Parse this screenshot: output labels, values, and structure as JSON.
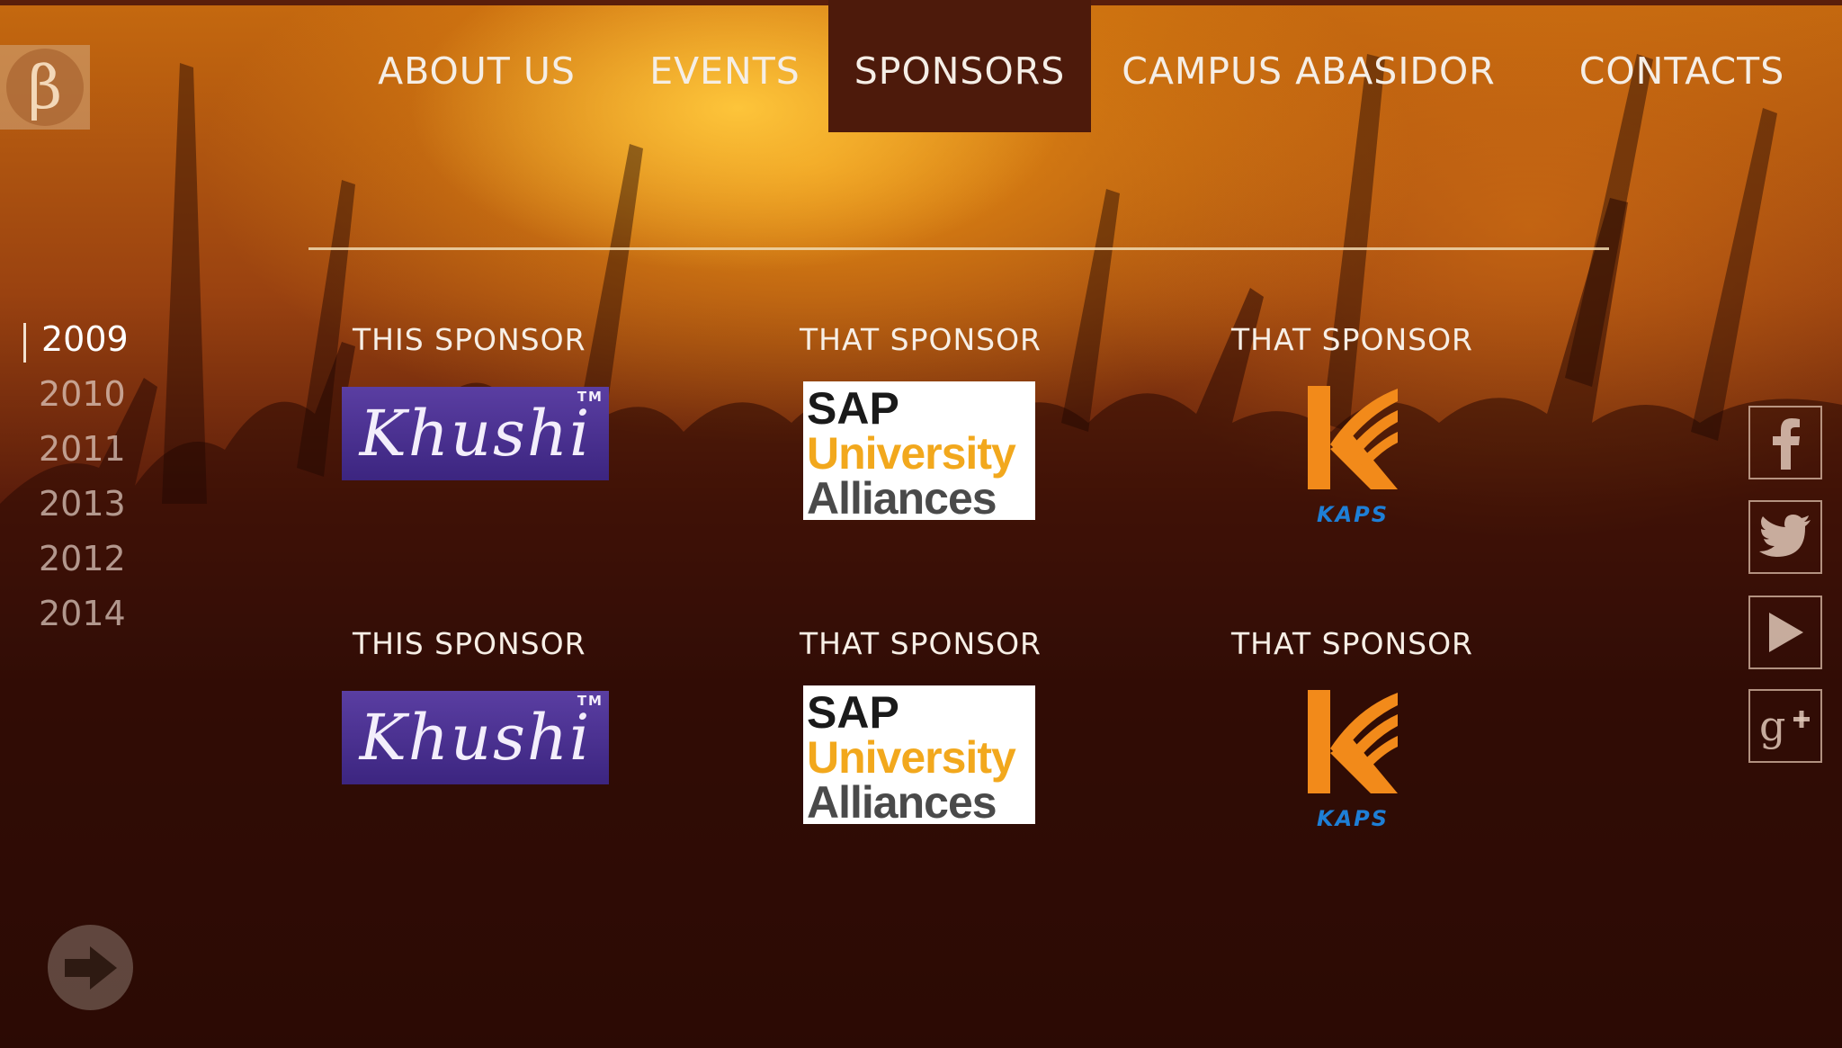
{
  "logo": {
    "glyph": "β"
  },
  "nav": {
    "items": [
      {
        "label": "ABOUT US"
      },
      {
        "label": "EVENTS"
      },
      {
        "label": "SPONSORS"
      },
      {
        "label": "CAMPUS ABASIDOR"
      },
      {
        "label": "CONTACTS"
      }
    ],
    "active": "SPONSORS"
  },
  "years": {
    "items": [
      "2009",
      "2010",
      "2011",
      "2013",
      "2012",
      "2014"
    ],
    "active": "2009"
  },
  "sponsors": [
    {
      "label": "THIS SPONSOR",
      "logo": "Khushi",
      "logo_mark": "TM"
    },
    {
      "label": "THAT SPONSOR",
      "logo": "SAP University Alliances",
      "lines": [
        "SAP",
        "University",
        "Alliances"
      ]
    },
    {
      "label": "THAT SPONSOR",
      "logo": "KAPS",
      "logo_text": "KAPS"
    },
    {
      "label": "THIS SPONSOR",
      "logo": "Khushi",
      "logo_mark": "TM"
    },
    {
      "label": "THAT SPONSOR",
      "logo": "SAP University Alliances",
      "lines": [
        "SAP",
        "University",
        "Alliances"
      ]
    },
    {
      "label": "THAT SPONSOR",
      "logo": "KAPS",
      "logo_text": "KAPS"
    }
  ],
  "social": [
    "facebook-icon",
    "twitter-icon",
    "youtube-play-icon",
    "google-plus-icon"
  ],
  "colors": {
    "accent": "#4d1a0b",
    "kaps_orange": "#f28a1a",
    "kaps_blue": "#1e7fd6",
    "sap_gold": "#f2a81d"
  }
}
